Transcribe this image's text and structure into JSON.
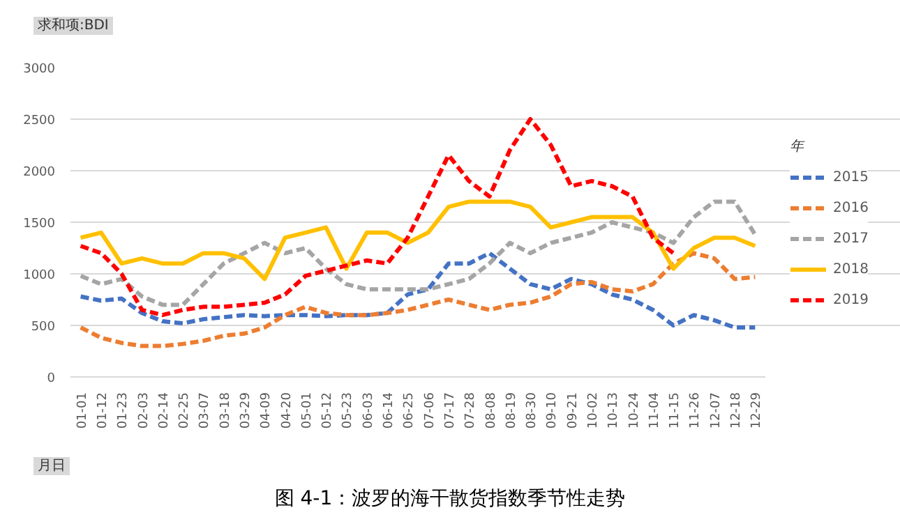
{
  "chart_data": {
    "type": "line",
    "ylabel": "求和项:BDI",
    "xlabel": "月日",
    "legend_title": "年",
    "legend": "right",
    "grid": "y",
    "marker": "none",
    "categories": [
      "01-01",
      "01-12",
      "01-23",
      "02-03",
      "02-14",
      "02-25",
      "03-07",
      "03-18",
      "03-29",
      "04-09",
      "04-20",
      "05-01",
      "05-12",
      "05-23",
      "06-03",
      "06-14",
      "06-25",
      "07-06",
      "07-17",
      "07-28",
      "08-08",
      "08-19",
      "08-30",
      "09-10",
      "09-21",
      "10-02",
      "10-13",
      "10-24",
      "11-04",
      "11-15",
      "11-26",
      "12-07",
      "12-18",
      "12-29"
    ],
    "ylim": [
      0,
      3000
    ],
    "yticks": [
      0,
      500,
      1000,
      1500,
      2000,
      2500,
      3000
    ],
    "series": [
      {
        "name": "2015",
        "color": "#4472c4",
        "line_style": "dashed",
        "values": [
          780,
          740,
          760,
          620,
          540,
          520,
          560,
          580,
          600,
          590,
          600,
          600,
          590,
          600,
          600,
          620,
          800,
          850,
          1100,
          1100,
          1200,
          1050,
          900,
          850,
          950,
          900,
          800,
          750,
          650,
          500,
          600,
          550,
          480,
          480
        ]
      },
      {
        "name": "2016",
        "color": "#ed7d31",
        "line_style": "dashed",
        "values": [
          480,
          380,
          330,
          300,
          300,
          320,
          350,
          400,
          420,
          480,
          600,
          680,
          620,
          600,
          600,
          620,
          650,
          700,
          750,
          700,
          650,
          700,
          720,
          780,
          900,
          920,
          850,
          830,
          900,
          1100,
          1200,
          1150,
          950,
          970
        ]
      },
      {
        "name": "2017",
        "color": "#a5a5a5",
        "line_style": "dashed",
        "values": [
          980,
          900,
          950,
          780,
          700,
          700,
          900,
          1100,
          1200,
          1300,
          1200,
          1250,
          1050,
          900,
          850,
          850,
          850,
          850,
          900,
          950,
          1100,
          1300,
          1200,
          1300,
          1350,
          1400,
          1500,
          1450,
          1400,
          1300,
          1550,
          1700,
          1700,
          1380
        ]
      },
      {
        "name": "2018",
        "color": "#ffc000",
        "line_style": "solid",
        "values": [
          1350,
          1400,
          1100,
          1150,
          1100,
          1100,
          1200,
          1200,
          1150,
          950,
          1350,
          1400,
          1450,
          1050,
          1400,
          1400,
          1300,
          1400,
          1650,
          1700,
          1700,
          1700,
          1650,
          1450,
          1500,
          1550,
          1550,
          1550,
          1400,
          1050,
          1250,
          1350,
          1350,
          1270
        ]
      },
      {
        "name": "2019",
        "color": "#ff0000",
        "line_style": "dashed",
        "values": [
          1270,
          1200,
          1000,
          650,
          600,
          650,
          680,
          680,
          700,
          720,
          800,
          980,
          1030,
          1080,
          1130,
          1100,
          1350,
          1750,
          2150,
          1900,
          1750,
          2200,
          2500,
          2250,
          1850,
          1900,
          1850,
          1750,
          1350,
          1200,
          null,
          null,
          null,
          null
        ]
      }
    ],
    "annotations": [
      "图 4-1：波罗的海干散货指数季节性走势"
    ]
  }
}
